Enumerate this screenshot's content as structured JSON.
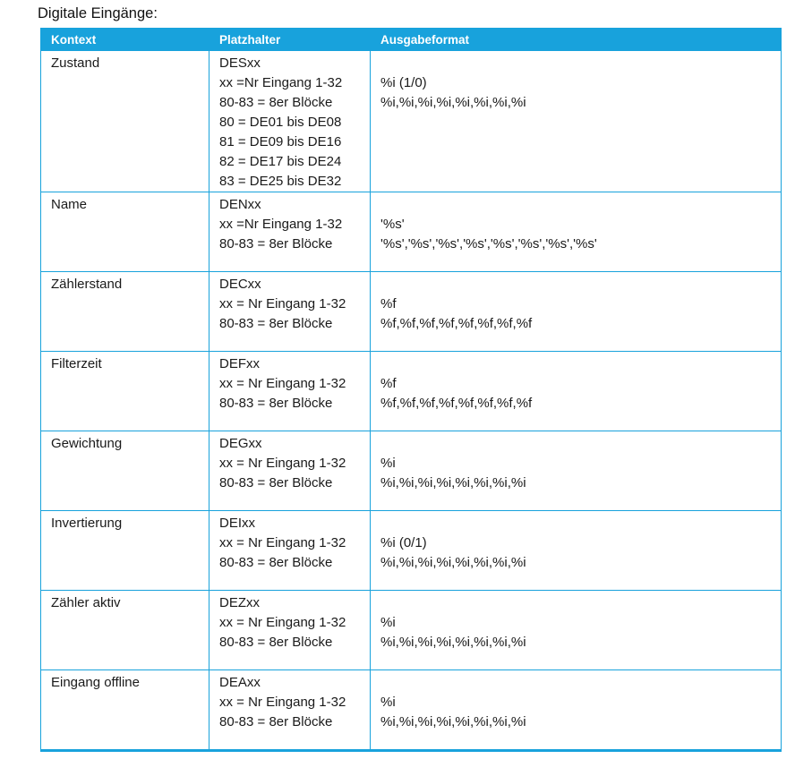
{
  "colors": {
    "accent": "#18A2DC"
  },
  "page": {
    "title": "Digitale Eingänge:"
  },
  "table": {
    "headers": {
      "kontext": "Kontext",
      "platzhalter": "Platzhalter",
      "ausgabeformat": "Ausgabeformat"
    },
    "rows": [
      {
        "kontext": "Zustand",
        "platzhalter": [
          "DESxx",
          "xx =Nr Eingang 1-32",
          "80-83 = 8er Blöcke",
          "80 = DE01 bis DE08",
          "81 = DE09 bis DE16",
          "82 = DE17 bis DE24",
          "83 = DE25 bis DE32"
        ],
        "ausgabeformat": [
          "%i (1/0)",
          "%i,%i,%i,%i,%i,%i,%i,%i"
        ]
      },
      {
        "kontext": "Name",
        "platzhalter": [
          "DENxx",
          "xx =Nr Eingang 1-32",
          "80-83 = 8er Blöcke"
        ],
        "ausgabeformat": [
          "'%s'",
          "'%s','%s','%s','%s','%s','%s','%s','%s'"
        ]
      },
      {
        "kontext": "Zählerstand",
        "platzhalter": [
          "DECxx",
          "xx = Nr Eingang 1-32",
          "80-83 = 8er Blöcke"
        ],
        "ausgabeformat": [
          "%f",
          "%f,%f,%f,%f,%f,%f,%f,%f"
        ]
      },
      {
        "kontext": "Filterzeit",
        "platzhalter": [
          "DEFxx",
          "xx = Nr Eingang 1-32",
          "80-83 = 8er Blöcke"
        ],
        "ausgabeformat": [
          "%f",
          "%f,%f,%f,%f,%f,%f,%f,%f"
        ]
      },
      {
        "kontext": "Gewichtung",
        "platzhalter": [
          "DEGxx",
          "xx = Nr Eingang 1-32",
          "80-83 = 8er Blöcke"
        ],
        "ausgabeformat": [
          "%i",
          "%i,%i,%i,%i,%i,%i,%i,%i"
        ]
      },
      {
        "kontext": "Invertierung",
        "platzhalter": [
          "DEIxx",
          "xx = Nr Eingang 1-32",
          "80-83 = 8er Blöcke"
        ],
        "ausgabeformat": [
          "%i (0/1)",
          "%i,%i,%i,%i,%i,%i,%i,%i"
        ]
      },
      {
        "kontext": "Zähler aktiv",
        "platzhalter": [
          "DEZxx",
          "xx = Nr Eingang 1-32",
          "80-83 = 8er Blöcke"
        ],
        "ausgabeformat": [
          "%i",
          "%i,%i,%i,%i,%i,%i,%i,%i"
        ]
      },
      {
        "kontext": "Eingang offline",
        "platzhalter": [
          "DEAxx",
          "xx = Nr Eingang 1-32",
          "80-83 = 8er Blöcke"
        ],
        "ausgabeformat": [
          "%i",
          "%i,%i,%i,%i,%i,%i,%i,%i"
        ]
      }
    ]
  }
}
